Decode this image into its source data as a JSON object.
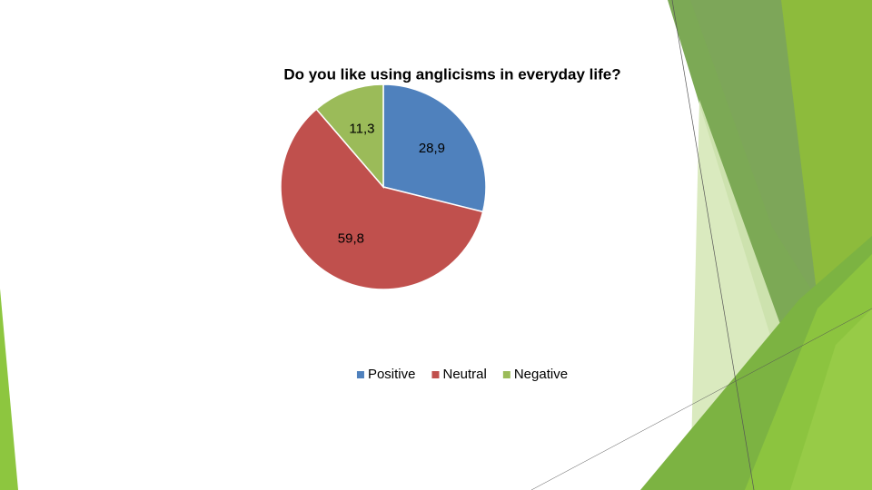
{
  "chart_data": {
    "type": "pie",
    "title": "Do you like  using anglicisms in everyday life?",
    "categories": [
      "Positive",
      "Neutral",
      "Negative"
    ],
    "values": [
      28.9,
      59.8,
      11.3
    ],
    "value_labels": [
      "28,9",
      "59,8",
      "11,3"
    ],
    "colors": [
      "#4f81bd",
      "#c0504d",
      "#9bbb59"
    ],
    "legend": "bottom"
  }
}
